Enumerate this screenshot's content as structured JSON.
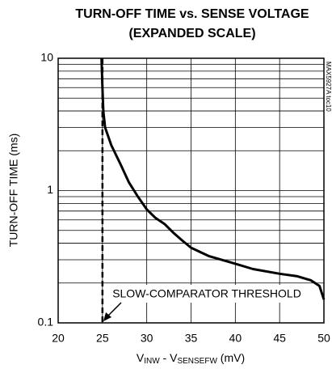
{
  "chart_data": {
    "type": "line",
    "title": [
      "TURN-OFF TIME vs. SENSE VOLTAGE",
      "(EXPANDED SCALE)"
    ],
    "ylabel": "TURN-OFF TIME (ms)",
    "xlabel_parts": [
      "V",
      "INW",
      " - V",
      "SENSEFW",
      " (mV)"
    ],
    "annotation": "SLOW-COMPARATOR THRESHOLD",
    "side_note": "MAX5927A toc10",
    "threshold_x": 25,
    "x": [
      24.9,
      25,
      25.1,
      25.3,
      26,
      27,
      28,
      29,
      30,
      31,
      32,
      33,
      34,
      35,
      37,
      40,
      42,
      45,
      47,
      48.5,
      49.5,
      50
    ],
    "values": [
      10,
      6,
      4,
      3,
      2.2,
      1.6,
      1.15,
      0.9,
      0.72,
      0.62,
      0.56,
      0.48,
      0.42,
      0.37,
      0.32,
      0.28,
      0.255,
      0.235,
      0.225,
      0.21,
      0.19,
      0.15
    ],
    "color": "#000000",
    "xlim": [
      20,
      50
    ],
    "xticks": [
      20,
      25,
      30,
      35,
      40,
      45,
      50
    ],
    "ylim": [
      0.1,
      10
    ],
    "yticks": [
      0.1,
      1,
      10
    ],
    "log_y": true,
    "ygrid": [
      0.2,
      0.3,
      0.4,
      0.5,
      0.6,
      0.7,
      0.8,
      0.9,
      2,
      3,
      4,
      5,
      6,
      7,
      8,
      9
    ],
    "grid": true
  }
}
